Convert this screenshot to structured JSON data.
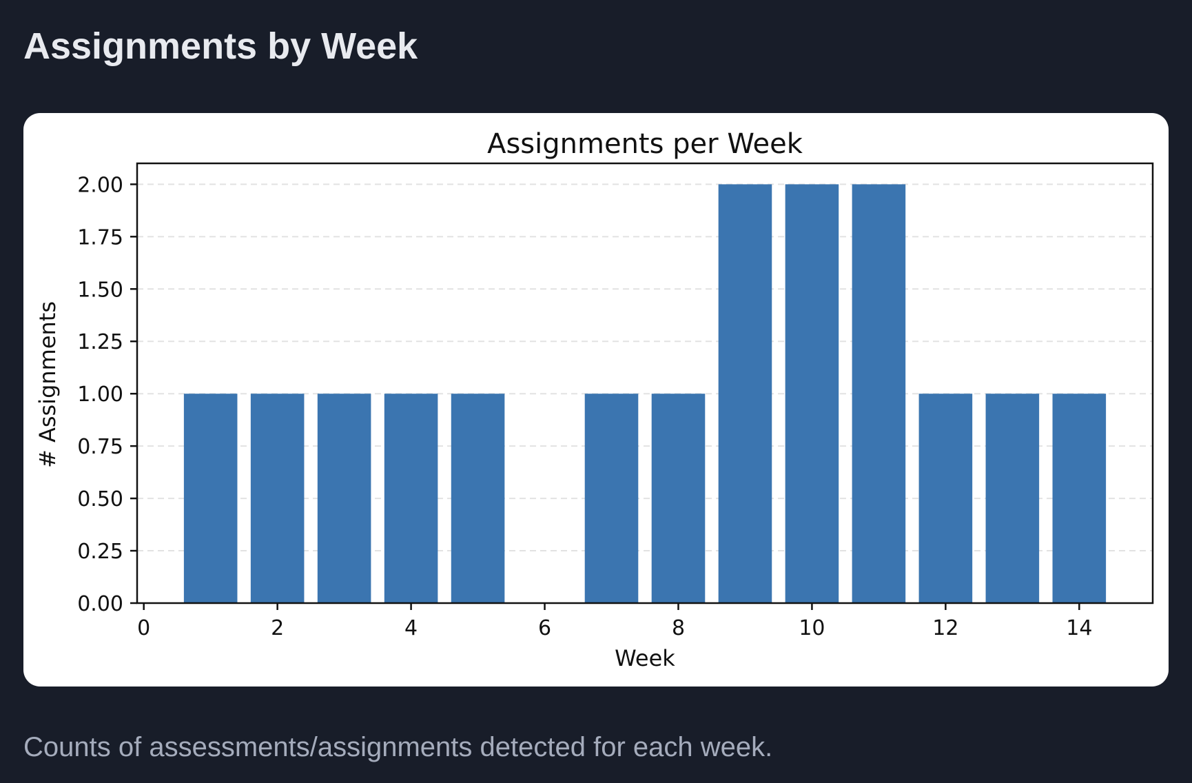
{
  "page": {
    "title": "Assignments by Week",
    "caption": "Counts of assessments/assignments detected for each week."
  },
  "colors": {
    "background": "#181d29",
    "card": "#ffffff",
    "bar": "#3b75b0",
    "title_text": "#e8eaef",
    "caption_text": "#a5acbc",
    "grid": "#e2e2e2"
  },
  "chart_data": {
    "type": "bar",
    "title": "Assignments per Week",
    "xlabel": "Week",
    "ylabel": "# Assignments",
    "x": [
      1,
      2,
      3,
      4,
      5,
      7,
      8,
      9,
      10,
      11,
      12,
      13,
      14
    ],
    "values": [
      1,
      1,
      1,
      1,
      1,
      1,
      1,
      2,
      2,
      2,
      1,
      1,
      1
    ],
    "xlim": [
      -0.1,
      15.1
    ],
    "ylim": [
      0,
      2.1
    ],
    "xticks": [
      0,
      2,
      4,
      6,
      8,
      10,
      12,
      14
    ],
    "xtick_labels": [
      "0",
      "2",
      "4",
      "6",
      "8",
      "10",
      "12",
      "14"
    ],
    "yticks": [
      0,
      0.25,
      0.5,
      0.75,
      1.0,
      1.25,
      1.5,
      1.75,
      2.0
    ],
    "ytick_labels": [
      "0.00",
      "0.25",
      "0.50",
      "0.75",
      "1.00",
      "1.25",
      "1.50",
      "1.75",
      "2.00"
    ],
    "bar_width": 0.8,
    "grid": "y-dashed",
    "legend": "none"
  }
}
